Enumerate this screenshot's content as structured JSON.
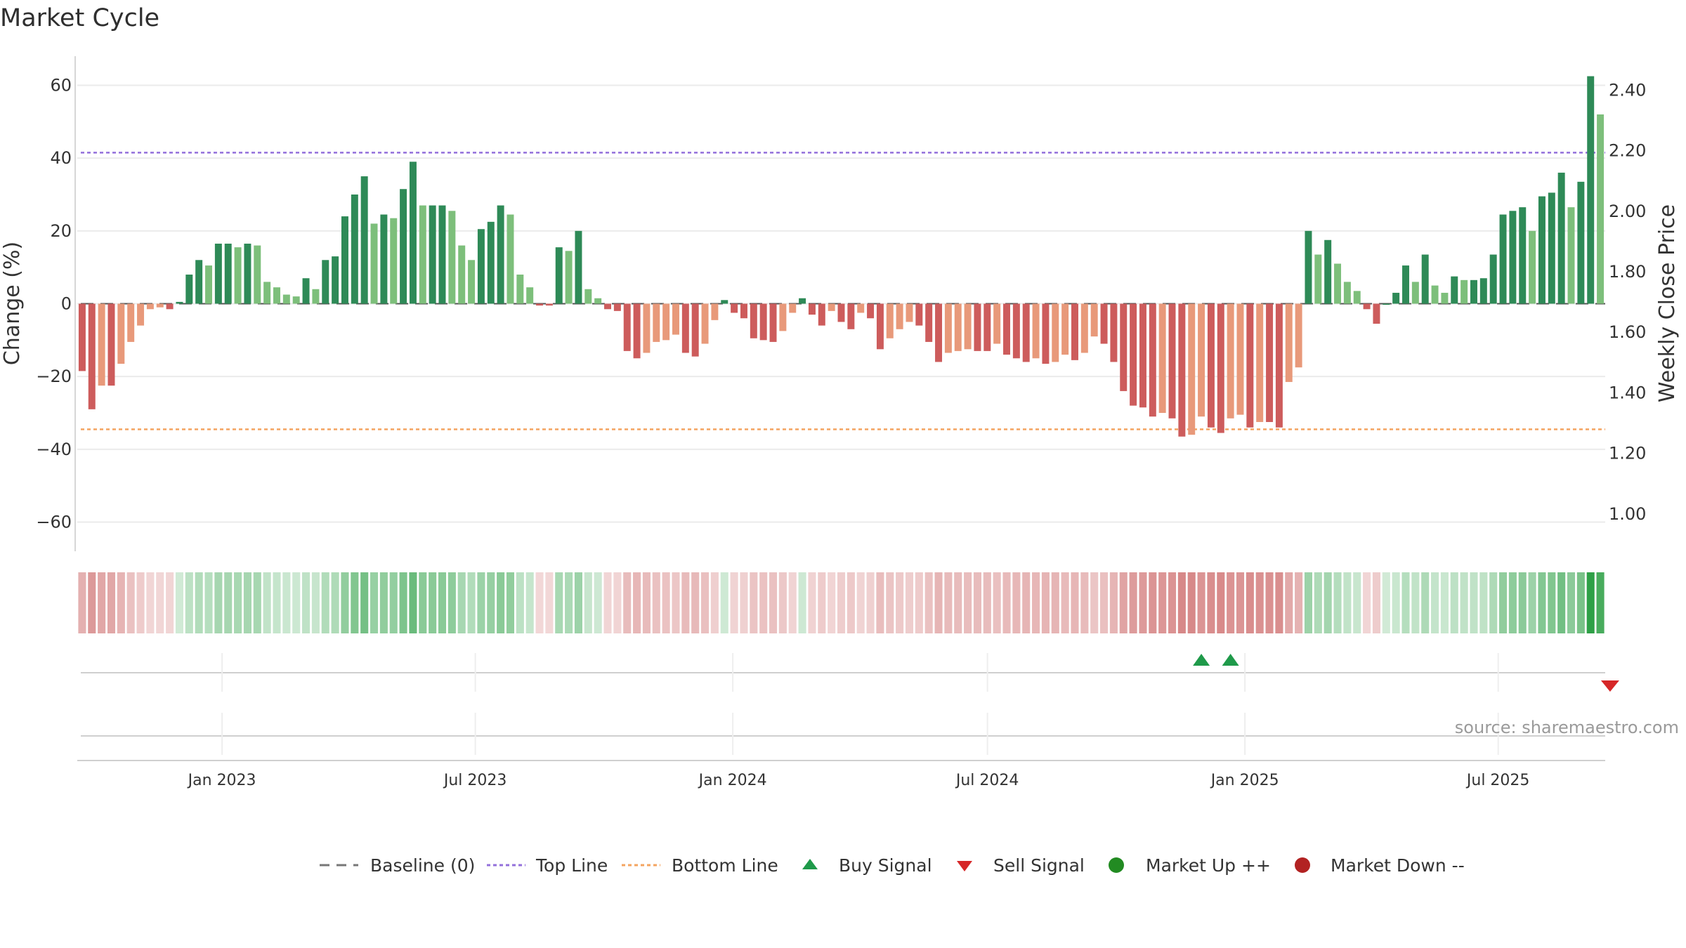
{
  "chart_data": {
    "type": "bar",
    "title": "Market Cycle",
    "ylabel": "Change (%)",
    "y2label": "Weekly Close Price",
    "ylim": [
      -68,
      68
    ],
    "y2lim": [
      0.877,
      2.512
    ],
    "yticks": [
      "60",
      "40",
      "20",
      "0",
      "−20",
      "−40",
      "−60"
    ],
    "y2ticks": [
      "2.40",
      "2.20",
      "2.00",
      "1.80",
      "1.60",
      "1.40",
      "1.20",
      "1.00"
    ],
    "top_line": 41.5,
    "bottom_line": -34.5,
    "x_start": "2022-09-23",
    "x_end": "2025-09-12",
    "x_ticks": [
      "Jan 2023",
      "Jul 2023",
      "Jan 2024",
      "Jul 2024",
      "Jan 2025",
      "Jul 2025"
    ],
    "values": [
      -18.5,
      -29,
      -22.5,
      -22.5,
      -16.5,
      -10.5,
      -6,
      -1.5,
      -1,
      -1.5,
      0.5,
      8,
      12,
      10.5,
      16.5,
      16.5,
      15.5,
      16.5,
      16,
      6,
      4.5,
      2.5,
      2,
      7,
      4,
      12,
      13,
      24,
      30,
      35,
      22,
      24.5,
      23.5,
      31.5,
      39,
      27,
      27,
      27,
      25.5,
      16,
      12,
      20.5,
      22.5,
      27,
      24.5,
      8,
      4.5,
      -0.5,
      -0.5,
      15.5,
      14.5,
      20,
      4,
      1.5,
      -1.5,
      -2,
      -13,
      -15,
      -13.5,
      -10.5,
      -10,
      -8.5,
      -13.5,
      -14.5,
      -11,
      -4.5,
      1,
      -2.5,
      -4,
      -9.5,
      -10,
      -10.5,
      -7.5,
      -2.5,
      1.5,
      -3,
      -6,
      -2,
      -5,
      -7,
      -2.5,
      -4,
      -12.5,
      -9.5,
      -7,
      -5,
      -6,
      -10.5,
      -16,
      -13.5,
      -13,
      -12.5,
      -13,
      -13,
      -11,
      -14,
      -15,
      -16,
      -15,
      -16.5,
      -16,
      -14,
      -15.5,
      -13.5,
      -9,
      -11,
      -16,
      -24,
      -28,
      -28.5,
      -31,
      -30,
      -31.5,
      -36.5,
      -36,
      -31,
      -34,
      -35.5,
      -31.5,
      -30.5,
      -34,
      -32.5,
      -32.5,
      -34,
      -21.5,
      -17.5,
      20,
      13.5,
      17.5,
      11,
      6,
      3.5,
      -1.5,
      -5.5,
      0,
      3,
      10.5,
      6,
      13.5,
      5,
      3,
      7.5,
      6.5,
      6.5,
      7,
      13.5,
      24.5,
      25.5,
      26.5,
      20,
      29.5,
      30.5,
      36,
      26.5,
      33.5,
      62.5,
      52
    ],
    "buy_signal_indices": [
      115,
      118
    ],
    "sell_signal_indices": [
      157
    ],
    "legend": [
      "Baseline (0)",
      "Top Line",
      "Bottom Line",
      "Buy Signal",
      "Sell Signal",
      "Market Up ++",
      "Market Down --"
    ],
    "grid": true,
    "legend_position": "bottom"
  },
  "source_text": "source: sharemaestro.com",
  "colors": {
    "up_dark": "#2e8a57",
    "up_light": "#7dbf7b",
    "down_dark": "#cd5c5c",
    "down_light": "#e8997a",
    "top_line": "#9370db",
    "bottom_line": "#f4a460",
    "buy": "#1f9a4a",
    "sell": "#d62728",
    "market_up": "#228b22",
    "market_down": "#b22222"
  }
}
